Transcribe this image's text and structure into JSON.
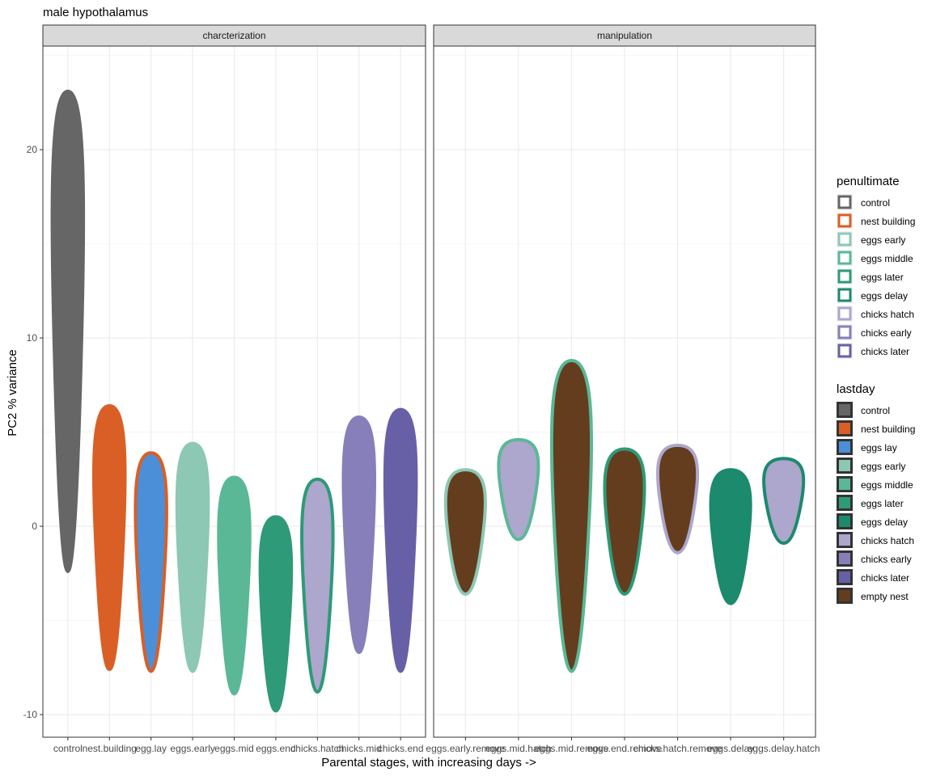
{
  "chart_data": {
    "type": "violin",
    "title": "male hypothalamus",
    "xlabel": "Parental stages, with increasing days ->",
    "ylabel": "PC2 % variance",
    "ylim": [
      -11.2,
      25.5
    ],
    "yticks": [
      -10,
      0,
      10,
      20
    ],
    "grid": true,
    "legend_position": "right",
    "panels": [
      {
        "strip": "charcterization",
        "categories": [
          "control",
          "nest.building",
          "egg.lay",
          "eggs.early",
          "eggs.mid",
          "eggs.end",
          "chicks.hatch",
          "chicks.mid",
          "chicks.end"
        ],
        "violins": [
          {
            "category": "control",
            "fill": "#666666",
            "outline": "#666666",
            "ymin": -2.4,
            "ymax": 23.1
          },
          {
            "category": "nest.building",
            "fill": "#D95F26",
            "outline": "#D95F26",
            "ymin": -7.6,
            "ymax": 6.4
          },
          {
            "category": "egg.lay",
            "fill": "#4A8FD8",
            "outline": "#D95F26",
            "ymin": -7.7,
            "ymax": 3.9
          },
          {
            "category": "eggs.early",
            "fill": "#8CC8B4",
            "outline": "#8CC8B4",
            "ymin": -7.7,
            "ymax": 4.4
          },
          {
            "category": "eggs.mid",
            "fill": "#5AB896",
            "outline": "#5AB896",
            "ymin": -8.9,
            "ymax": 2.6
          },
          {
            "category": "eggs.end",
            "fill": "#2E9A77",
            "outline": "#2E9A77",
            "ymin": -9.8,
            "ymax": 0.5
          },
          {
            "category": "chicks.hatch",
            "fill": "#ADA6CD",
            "outline": "#2E9A77",
            "ymin": -8.8,
            "ymax": 2.5
          },
          {
            "category": "chicks.mid",
            "fill": "#877FB9",
            "outline": "#877FB9",
            "ymin": -6.7,
            "ymax": 5.8
          },
          {
            "category": "chicks.end",
            "fill": "#6760A6",
            "outline": "#6760A6",
            "ymin": -7.7,
            "ymax": 6.2
          }
        ]
      },
      {
        "strip": "manipulation",
        "categories": [
          "eggs.early.remove",
          "eggs.mid.hatch",
          "eggs.mid.remove",
          "eggs.end.remove",
          "chicks.hatch.remove",
          "eggs.delay",
          "eggs.delay.hatch"
        ],
        "violins": [
          {
            "category": "eggs.early.remove",
            "fill": "#633D1E",
            "outline": "#8CC8B4",
            "ymin": -3.6,
            "ymax": 3.0
          },
          {
            "category": "eggs.mid.hatch",
            "fill": "#ADA6CD",
            "outline": "#5AB896",
            "ymin": -0.7,
            "ymax": 4.6
          },
          {
            "category": "eggs.mid.remove",
            "fill": "#633D1E",
            "outline": "#5AB896",
            "ymin": -7.7,
            "ymax": 8.8
          },
          {
            "category": "eggs.end.remove",
            "fill": "#633D1E",
            "outline": "#2E9A77",
            "ymin": -3.6,
            "ymax": 4.1
          },
          {
            "category": "chicks.hatch.remove",
            "fill": "#633D1E",
            "outline": "#ADA6CD",
            "ymin": -1.4,
            "ymax": 4.3
          },
          {
            "category": "eggs.delay",
            "fill": "#1C8A6C",
            "outline": "#1C8A6C",
            "ymin": -4.1,
            "ymax": 3.0
          },
          {
            "category": "eggs.delay.hatch",
            "fill": "#ADA6CD",
            "outline": "#1C8A6C",
            "ymin": -0.9,
            "ymax": 3.6
          }
        ]
      }
    ],
    "legends": [
      {
        "title": "penultimate",
        "items": [
          {
            "label": "control",
            "color": "#666666"
          },
          {
            "label": "nest building",
            "color": "#D95F26"
          },
          {
            "label": "eggs early",
            "color": "#8CC8B4"
          },
          {
            "label": "eggs middle",
            "color": "#5AB896"
          },
          {
            "label": "eggs later",
            "color": "#2E9A77"
          },
          {
            "label": "eggs delay",
            "color": "#1C8A6C"
          },
          {
            "label": "chicks hatch",
            "color": "#ADA6CD"
          },
          {
            "label": "chicks early",
            "color": "#877FB9"
          },
          {
            "label": "chicks later",
            "color": "#6760A6"
          }
        ]
      },
      {
        "title": "lastday",
        "items": [
          {
            "label": "control",
            "color": "#666666"
          },
          {
            "label": "nest building",
            "color": "#D95F26"
          },
          {
            "label": "eggs lay",
            "color": "#4A8FD8"
          },
          {
            "label": "eggs early",
            "color": "#8CC8B4"
          },
          {
            "label": "eggs middle",
            "color": "#5AB896"
          },
          {
            "label": "eggs later",
            "color": "#2E9A77"
          },
          {
            "label": "eggs delay",
            "color": "#1C8A6C"
          },
          {
            "label": "chicks hatch",
            "color": "#ADA6CD"
          },
          {
            "label": "chicks early",
            "color": "#877FB9"
          },
          {
            "label": "chicks later",
            "color": "#6760A6"
          },
          {
            "label": "empty nest",
            "color": "#633D1E"
          }
        ]
      }
    ]
  }
}
